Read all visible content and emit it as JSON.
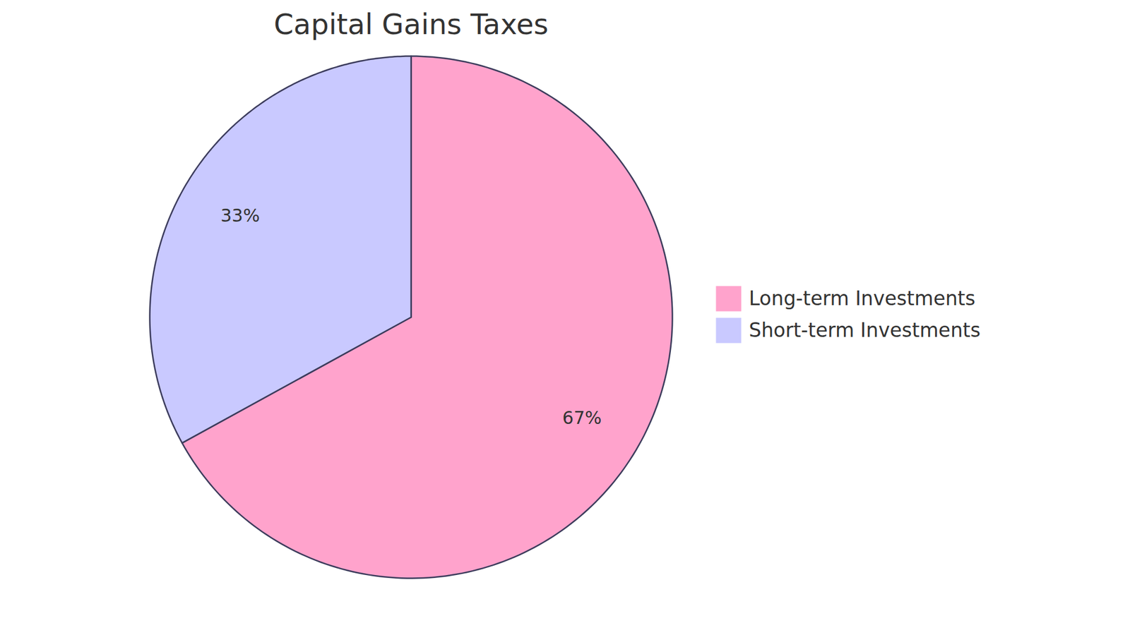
{
  "chart_data": {
    "type": "pie",
    "title": "Capital Gains Taxes",
    "categories": [
      "Long-term Investments",
      "Short-term Investments"
    ],
    "values": [
      67,
      33
    ],
    "value_labels": [
      "67%",
      "33%"
    ],
    "colors": [
      "#ffa3cc",
      "#c9c9ff"
    ],
    "data_labels": true,
    "legend": "right"
  }
}
